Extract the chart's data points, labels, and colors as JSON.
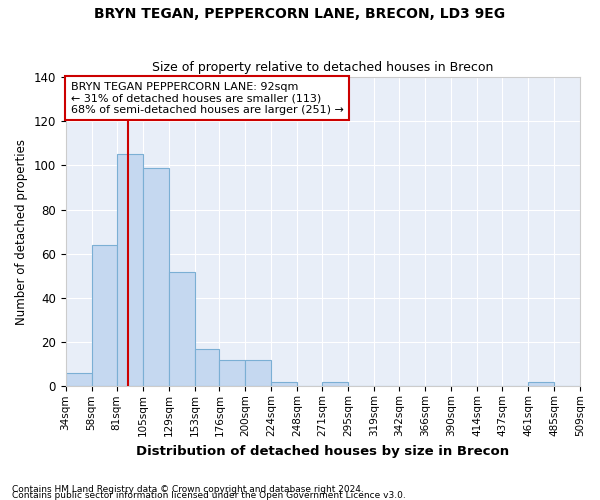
{
  "title": "BRYN TEGAN, PEPPERCORN LANE, BRECON, LD3 9EG",
  "subtitle": "Size of property relative to detached houses in Brecon",
  "xlabel": "Distribution of detached houses by size in Brecon",
  "ylabel": "Number of detached properties",
  "footnote1": "Contains HM Land Registry data © Crown copyright and database right 2024.",
  "footnote2": "Contains public sector information licensed under the Open Government Licence v3.0.",
  "property_size": 92,
  "vline_color": "#cc0000",
  "bar_color": "#c5d8f0",
  "bar_edge_color": "#7bafd4",
  "background_color": "#e8eef8",
  "grid_color": "#ffffff",
  "annotation_text": "BRYN TEGAN PEPPERCORN LANE: 92sqm\n← 31% of detached houses are smaller (113)\n68% of semi-detached houses are larger (251) →",
  "annotation_box_color": "#ffffff",
  "annotation_box_edge": "#cc0000",
  "bin_edges": [
    34,
    58,
    81,
    105,
    129,
    153,
    176,
    200,
    224,
    248,
    271,
    295,
    319,
    342,
    366,
    390,
    414,
    437,
    461,
    485,
    509
  ],
  "bin_counts": [
    6,
    64,
    105,
    99,
    52,
    17,
    12,
    12,
    2,
    0,
    2,
    0,
    0,
    0,
    0,
    0,
    0,
    0,
    2,
    0
  ],
  "ylim": [
    0,
    140
  ],
  "yticks": [
    0,
    20,
    40,
    60,
    80,
    100,
    120,
    140
  ]
}
